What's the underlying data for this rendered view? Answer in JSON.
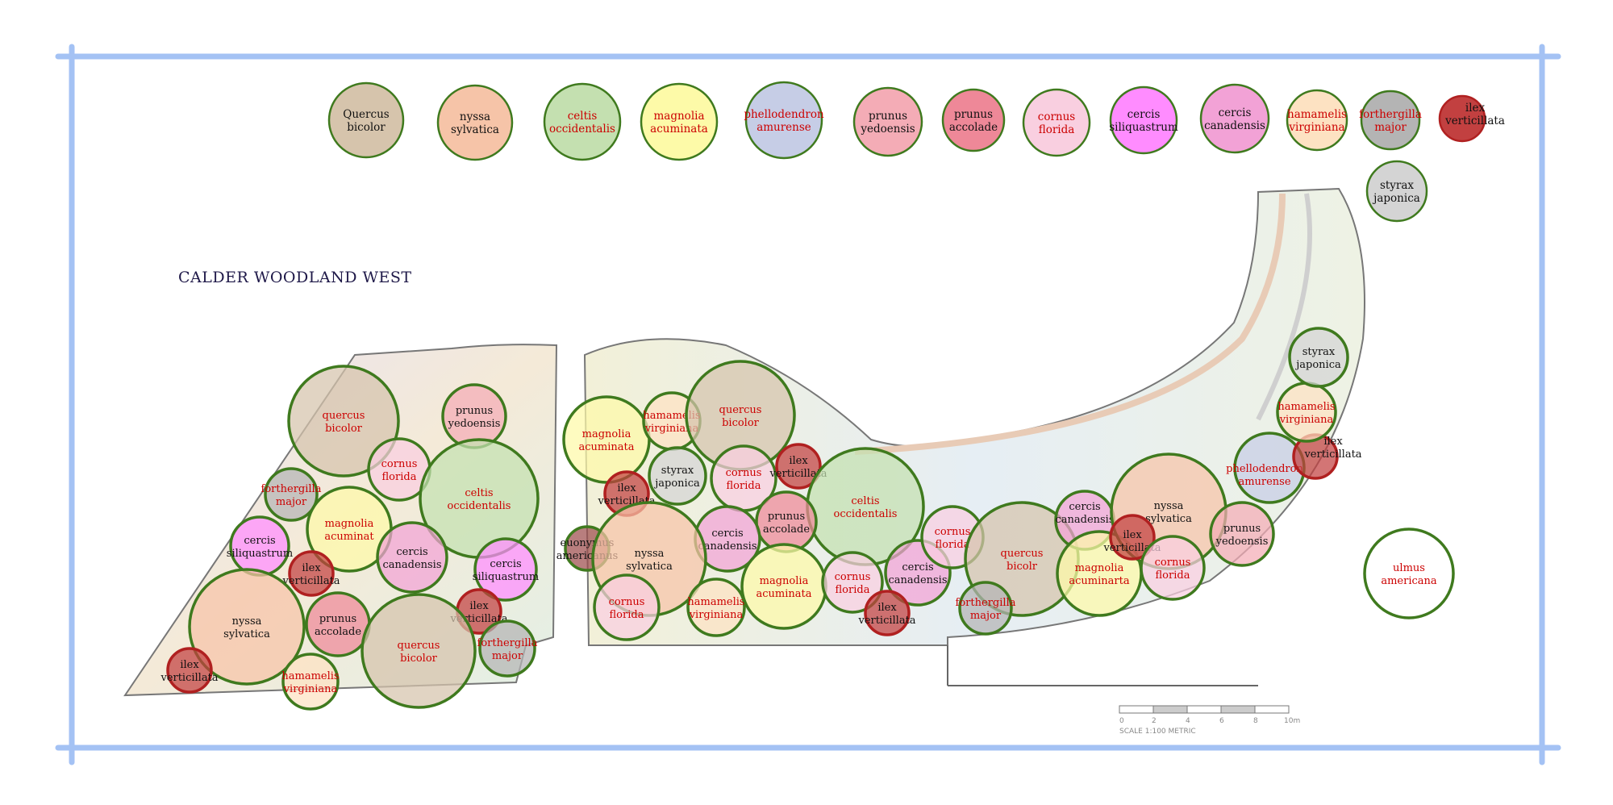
{
  "title": "CALDER WOODLAND WEST",
  "species": {
    "quercus": {
      "fill": "#d6c4ac",
      "stroke": "#3f7a1e",
      "text": "#cc0000"
    },
    "nyssa": {
      "fill": "#f6c4a8",
      "stroke": "#3f7a1e",
      "text": "#111111"
    },
    "celtis": {
      "fill": "#c4e0b0",
      "stroke": "#3f7a1e",
      "text": "#cc0000"
    },
    "magnolia": {
      "fill": "#fdfaa8",
      "stroke": "#3f7a1e",
      "text": "#cc0000"
    },
    "phellodendron": {
      "fill": "#c6cde6",
      "stroke": "#3f7a1e",
      "text": "#cc0000"
    },
    "prunus_yedoensis": {
      "fill": "#f4acb6",
      "stroke": "#3f7a1e",
      "text": "#111111"
    },
    "prunus_accolade": {
      "fill": "#ee8898",
      "stroke": "#3f7a1e",
      "text": "#111111"
    },
    "cornus": {
      "fill": "#f9cfe0",
      "stroke": "#3f7a1e",
      "text": "#cc0000"
    },
    "cercis_siliquastrum": {
      "fill": "#ff8cff",
      "stroke": "#3f7a1e",
      "text": "#111111"
    },
    "cercis_canadensis": {
      "fill": "#f2a2d6",
      "stroke": "#3f7a1e",
      "text": "#111111"
    },
    "hamamelis": {
      "fill": "#fde2c2",
      "stroke": "#3f7a1e",
      "text": "#cc0000"
    },
    "forthergilla": {
      "fill": "#b4b4b4",
      "stroke": "#3f7a1e",
      "text": "#cc0000"
    },
    "ilex": {
      "fill": "#c24040",
      "stroke": "#b02020",
      "text": "#111111"
    },
    "styrax": {
      "fill": "#d4d4d4",
      "stroke": "#3f7a1e",
      "text": "#111111"
    },
    "euonymus": {
      "fill": "#9c4c4c",
      "stroke": "#3f7a1e",
      "text": "#111111"
    },
    "ulmus": {
      "fill": "#ffffff",
      "stroke": "#3f7a1e",
      "text": "#cc0000"
    }
  },
  "legend": [
    {
      "species": "quercus",
      "label": [
        "Quercus",
        "bicolor"
      ],
      "text": "#111111"
    },
    {
      "species": "nyssa",
      "label": [
        "nyssa",
        "sylvatica"
      ]
    },
    {
      "species": "celtis",
      "label": [
        "celtis",
        "occidentalis"
      ]
    },
    {
      "species": "magnolia",
      "label": [
        "magnolia",
        "acuminata"
      ]
    },
    {
      "species": "phellodendron",
      "label": [
        "phellodendron",
        "amurense"
      ]
    },
    {
      "species": "prunus_yedoensis",
      "label": [
        "prunus",
        "yedoensis"
      ]
    },
    {
      "species": "prunus_accolade",
      "label": [
        "prunus",
        "accolade"
      ]
    },
    {
      "species": "cornus",
      "label": [
        "cornus",
        "florida"
      ]
    },
    {
      "species": "cercis_siliquastrum",
      "label": [
        "cercis",
        "siliquastrum"
      ]
    },
    {
      "species": "cercis_canadensis",
      "label": [
        "cercis",
        "canadensis"
      ]
    },
    {
      "species": "hamamelis",
      "label": [
        "hamamelis",
        "virginiana"
      ]
    },
    {
      "species": "forthergilla",
      "label": [
        "forthergilla",
        "major"
      ]
    },
    {
      "species": "ilex",
      "label": [
        "ilex",
        "verticillata"
      ]
    },
    {
      "species": "styrax",
      "label": [
        "styrax",
        "japonica"
      ]
    }
  ],
  "trees": [
    {
      "species": "quercus",
      "label": [
        "quercus",
        "bicolor"
      ]
    },
    {
      "species": "prunus_yedoensis",
      "label": [
        "prunus",
        "yedoensis"
      ]
    },
    {
      "species": "cornus",
      "label": [
        "cornus",
        "florida"
      ]
    },
    {
      "species": "celtis",
      "label": [
        "celtis",
        "occidentalis"
      ]
    },
    {
      "species": "forthergilla",
      "label": [
        "forthergilla",
        "major"
      ]
    },
    {
      "species": "magnolia",
      "label": [
        "magnolia",
        "acuminat"
      ]
    },
    {
      "species": "cercis_siliquastrum",
      "label": [
        "cercis",
        "siliquastrum"
      ]
    },
    {
      "species": "ilex",
      "label": [
        "ilex",
        "verticillata"
      ]
    },
    {
      "species": "cercis_canadensis",
      "label": [
        "cercis",
        "canadensis"
      ]
    },
    {
      "species": "cercis_siliquastrum",
      "label": [
        "cercis",
        "siliquastrum"
      ]
    },
    {
      "species": "nyssa",
      "label": [
        "nyssa",
        "sylvatica"
      ]
    },
    {
      "species": "prunus_accolade",
      "label": [
        "prunus",
        "accolade"
      ]
    },
    {
      "species": "ilex",
      "label": [
        "ilex",
        "verticillata"
      ]
    },
    {
      "species": "quercus",
      "label": [
        "quercus",
        "bicolor"
      ]
    },
    {
      "species": "forthergilla",
      "label": [
        "forthergilla",
        "major"
      ]
    },
    {
      "species": "ilex",
      "label": [
        "ilex",
        "verticillata"
      ]
    },
    {
      "species": "hamamelis",
      "label": [
        "hamamelis",
        "virginiana"
      ]
    },
    {
      "species": "magnolia",
      "label": [
        "magnolia",
        "acuminata"
      ]
    },
    {
      "species": "hamamelis",
      "label": [
        "hamamelis",
        "virginiana"
      ]
    },
    {
      "species": "quercus",
      "label": [
        "quercus",
        "bicolor"
      ]
    },
    {
      "species": "styrax",
      "label": [
        "styrax",
        "japonica"
      ]
    },
    {
      "species": "ilex",
      "label": [
        "ilex",
        "verticillata"
      ]
    },
    {
      "species": "cornus",
      "label": [
        "cornus",
        "florida"
      ]
    },
    {
      "species": "ilex",
      "label": [
        "ilex",
        "verticillata"
      ]
    },
    {
      "species": "celtis",
      "label": [
        "celtis",
        "occidentalis"
      ]
    },
    {
      "species": "prunus_accolade",
      "label": [
        "prunus",
        "accolade"
      ]
    },
    {
      "species": "cercis_canadensis",
      "label": [
        "cercis",
        "canadensis"
      ]
    },
    {
      "species": "euonymus",
      "label": [
        "euonymus",
        "americanus"
      ]
    },
    {
      "species": "nyssa",
      "label": [
        "nyssa",
        "sylvatica"
      ]
    },
    {
      "species": "cornus",
      "label": [
        "cornus",
        "florida"
      ]
    },
    {
      "species": "hamamelis",
      "label": [
        "hamamelis",
        "virginiana"
      ]
    },
    {
      "species": "magnolia",
      "label": [
        "magnolia",
        "acuminata"
      ]
    },
    {
      "species": "cornus",
      "label": [
        "cornus",
        "florida"
      ]
    },
    {
      "species": "cercis_canadensis",
      "label": [
        "cercis",
        "canadensis"
      ]
    },
    {
      "species": "ilex",
      "label": [
        "ilex",
        "verticillata"
      ]
    },
    {
      "species": "cornus",
      "label": [
        "cornus",
        "florida"
      ]
    },
    {
      "species": "quercus",
      "label": [
        "quercus",
        "bicolr"
      ]
    },
    {
      "species": "forthergilla",
      "label": [
        "forthergilla",
        "major"
      ]
    },
    {
      "species": "cercis_canadensis",
      "label": [
        "cercis",
        "canadensis"
      ]
    },
    {
      "species": "magnolia",
      "label": [
        "magnolia",
        "acuminarta"
      ]
    },
    {
      "species": "nyssa",
      "label": [
        "nyssa",
        "sylvatica"
      ]
    },
    {
      "species": "ilex",
      "label": [
        "ilex",
        "verticillata"
      ]
    },
    {
      "species": "cornus",
      "label": [
        "cornus",
        "florida"
      ]
    },
    {
      "species": "prunus_yedoensis",
      "label": [
        "prunus",
        "yedoensis"
      ]
    },
    {
      "species": "phellodendron",
      "label": [
        "phellodendron",
        "amurense"
      ]
    },
    {
      "species": "ilex",
      "label": [
        "ilex",
        "verticillata"
      ]
    },
    {
      "species": "hamamelis",
      "label": [
        "hamamelis",
        "virginiana"
      ]
    },
    {
      "species": "styrax",
      "label": [
        "styrax",
        "japonica"
      ]
    },
    {
      "species": "ulmus",
      "label": [
        "ulmus",
        "americana"
      ]
    }
  ],
  "scale_bar": {
    "ticks": [
      "0",
      "2",
      "4",
      "6",
      "8",
      "10m"
    ],
    "caption": "SCALE 1:100  METRIC"
  },
  "frame_color": "#a4c2f4"
}
